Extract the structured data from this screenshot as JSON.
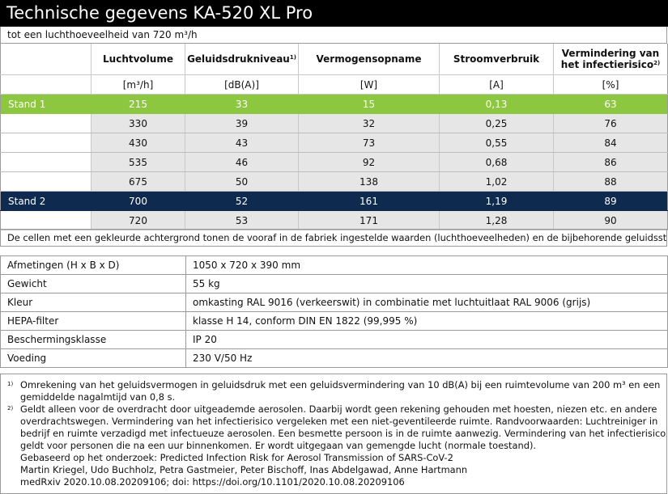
{
  "header": {
    "title": "Technische gegevens KA-520 XL Pro",
    "subtitle": "tot een luchthoeveelheid van 720 m³/h"
  },
  "table": {
    "columns": [
      {
        "label": "Luchtvolume",
        "label2": "",
        "sup": "",
        "unit": "[m³/h]"
      },
      {
        "label": "Geluidsdrukniveau",
        "label2": "",
        "sup": "1)",
        "unit": "[dB(A)]"
      },
      {
        "label": "Vermogensopname",
        "label2": "",
        "sup": "",
        "unit": "[W]"
      },
      {
        "label": "Stroomverbruik",
        "label2": "",
        "sup": "",
        "unit": "[A]"
      },
      {
        "label": "Vermindering van",
        "label2": "het infectierisico",
        "sup": "2)",
        "unit": "[%]"
      }
    ],
    "rows": [
      {
        "label": "Stand 1",
        "highlight": "green",
        "values": [
          "215",
          "33",
          "15",
          "0,13",
          "63"
        ]
      },
      {
        "label": "",
        "highlight": "grey",
        "values": [
          "330",
          "39",
          "32",
          "0,25",
          "76"
        ]
      },
      {
        "label": "",
        "highlight": "grey",
        "values": [
          "430",
          "43",
          "73",
          "0,55",
          "84"
        ]
      },
      {
        "label": "",
        "highlight": "grey",
        "values": [
          "535",
          "46",
          "92",
          "0,68",
          "86"
        ]
      },
      {
        "label": "",
        "highlight": "grey",
        "values": [
          "675",
          "50",
          "138",
          "1,02",
          "88"
        ]
      },
      {
        "label": "Stand 2",
        "highlight": "navy",
        "values": [
          "700",
          "52",
          "161",
          "1,19",
          "89"
        ]
      },
      {
        "label": "",
        "highlight": "grey",
        "values": [
          "720",
          "53",
          "171",
          "1,28",
          "90"
        ]
      }
    ]
  },
  "note": "De cellen met een gekleurde achtergrond tonen de vooraf in de fabriek ingestelde waarden (luchthoeveelheden) en de bijbehorende geluidssterkte.",
  "specs": [
    {
      "label": "Afmetingen (H x B x D)",
      "value": "1050 x 720 x 390 mm"
    },
    {
      "label": "Gewicht",
      "value": "55 kg"
    },
    {
      "label": "Kleur",
      "value": "omkasting RAL 9016 (verkeerswit) in combinatie met luchtuitlaat RAL 9006 (grijs)"
    },
    {
      "label": "HEPA-filter",
      "value": "klasse H 14, conform DIN EN 1822 (99,995 %)"
    },
    {
      "label": "Beschermingsklasse",
      "value": "IP 20"
    },
    {
      "label": "Voeding",
      "value": "230 V/50 Hz"
    }
  ],
  "footnotes": [
    {
      "mark": "1)",
      "lines": [
        "Omrekening van het geluidsvermogen in geluidsdruk met een geluidsvermindering van 10 dB(A) bij een ruimtevolume van 200 m³ en een",
        "gemiddelde nagalmtijd van 0,8 s."
      ]
    },
    {
      "mark": "2)",
      "lines": [
        "Geldt alleen voor de overdracht door uitgeademde aerosolen. Daarbij wordt geen rekening gehouden met hoesten, niezen etc. en andere",
        "overdrachtswegen. Vermindering van het infectierisico vergeleken met een niet-geventileerde ruimte. Randvoorwaarden: Luchtreiniger in",
        "bedrijf en ruimte verzadigd met infectueuze aerosolen. Een besmette persoon is in de ruimte aanwezig. Vermindering van het infectierisico",
        "geldt voor personen die na een uur binnenkomen. Er wordt uitgegaan van gemengde lucht (normale toestand).",
        "Gebaseerd op het onderzoek: Predicted Infection Risk for Aerosol Transmission of SARS-CoV-2",
        "Martin Kriegel, Udo Buchholz, Petra Gastmeier, Peter Bischoff, Inas Abdelgawad, Anne Hartmann",
        "medRxiv 2020.10.08.20209106; doi: https://doi.org/10.1101/2020.10.08.20209106"
      ]
    }
  ]
}
